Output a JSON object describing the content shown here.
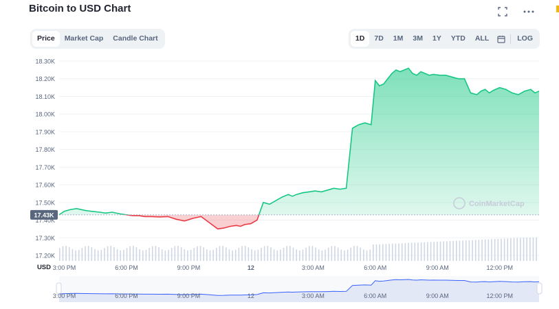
{
  "header": {
    "title": "Bitcoin to USD Chart",
    "fullscreen_icon": "fullscreen-icon",
    "more_icon": "more-options-icon"
  },
  "view_tabs": [
    {
      "label": "Price",
      "active": true
    },
    {
      "label": "Market Cap",
      "active": false
    },
    {
      "label": "Candle Chart",
      "active": false
    }
  ],
  "range_tabs": [
    {
      "label": "1D",
      "active": true
    },
    {
      "label": "7D",
      "active": false
    },
    {
      "label": "1M",
      "active": false
    },
    {
      "label": "3M",
      "active": false
    },
    {
      "label": "1Y",
      "active": false
    },
    {
      "label": "YTD",
      "active": false
    },
    {
      "label": "ALL",
      "active": false
    }
  ],
  "calendar_icon": "calendar-icon",
  "log_label": "LOG",
  "colors": {
    "up": "#16c784",
    "down": "#ea3943",
    "up_fill": "#16c784",
    "down_fill": "#ea3943",
    "grid": "#eff2f5",
    "axis_text": "#58667e",
    "navigator_fill": "#e3e8f7",
    "navigator_line": "#3861fb"
  },
  "chart_data": {
    "type": "area",
    "title": "Bitcoin to USD Chart",
    "ylabel": "USD",
    "ylim": [
      17200,
      18300
    ],
    "yticks": [
      "18.30K",
      "18.20K",
      "18.10K",
      "18.00K",
      "17.90K",
      "17.80K",
      "17.70K",
      "17.60K",
      "17.50K",
      "17.40K",
      "17.30K",
      "17.20K"
    ],
    "ytick_values": [
      18300,
      18200,
      18100,
      18000,
      17900,
      17800,
      17700,
      17600,
      17500,
      17400,
      17300,
      17200
    ],
    "y_unit_label": "USD",
    "baseline": 17430,
    "baseline_label": "17.43K",
    "xticks": [
      "3:00 PM",
      "6:00 PM",
      "9:00 PM",
      "12",
      "3:00 AM",
      "6:00 AM",
      "9:00 AM",
      "12:00 PM"
    ],
    "xtick_hours": [
      0,
      3,
      6,
      9,
      12,
      15,
      18,
      21
    ],
    "xlim_hours": [
      -0.25,
      22.9
    ],
    "series": [
      {
        "hours": [
          -0.25,
          0.0,
          0.3,
          0.6,
          1.0,
          1.3,
          1.7,
          2.0,
          2.3,
          2.7,
          3.0,
          3.3,
          3.6,
          3.9,
          4.2,
          4.6,
          5.0,
          5.4,
          5.8,
          6.2,
          6.6,
          7.0,
          7.4,
          7.7,
          8.0,
          8.3,
          8.5,
          8.7,
          9.0,
          9.3,
          9.6,
          9.9,
          10.2,
          10.5,
          10.8,
          11.0,
          11.2,
          11.5,
          11.8,
          12.1,
          12.4,
          12.7,
          13.0,
          13.3,
          13.6,
          13.9,
          14.2,
          14.5,
          14.8,
          15.0,
          15.2,
          15.4,
          15.6,
          15.8,
          16.0,
          16.2,
          16.4,
          16.6,
          16.8,
          17.0,
          17.2,
          17.4,
          17.6,
          17.8,
          18.1,
          18.4,
          18.7,
          19.0,
          19.3,
          19.6,
          19.9,
          20.1,
          20.3,
          20.5,
          20.7,
          21.0,
          21.3,
          21.6,
          21.9,
          22.2,
          22.5,
          22.7,
          22.9
        ],
        "values": [
          17430,
          17450,
          17460,
          17465,
          17455,
          17450,
          17445,
          17440,
          17445,
          17435,
          17430,
          17425,
          17425,
          17420,
          17420,
          17418,
          17420,
          17405,
          17395,
          17410,
          17420,
          17385,
          17350,
          17355,
          17365,
          17370,
          17365,
          17375,
          17380,
          17400,
          17500,
          17490,
          17510,
          17530,
          17545,
          17535,
          17545,
          17555,
          17560,
          17565,
          17560,
          17570,
          17580,
          17575,
          17580,
          17920,
          17940,
          17950,
          17940,
          18190,
          18160,
          18170,
          18200,
          18230,
          18250,
          18240,
          18250,
          18260,
          18230,
          18220,
          18240,
          18230,
          18220,
          18225,
          18220,
          18220,
          18210,
          18200,
          18200,
          18120,
          18110,
          18130,
          18140,
          18120,
          18135,
          18150,
          18140,
          18120,
          18110,
          18130,
          18140,
          18120,
          18130
        ]
      }
    ],
    "volume_bars": "present",
    "navigator_xticks": [
      "3:00 PM",
      "6:00 PM",
      "9:00 PM",
      "12",
      "3:00 AM",
      "6:00 AM",
      "9:00 AM",
      "12:00 PM"
    ],
    "watermark": "CoinMarketCap"
  }
}
